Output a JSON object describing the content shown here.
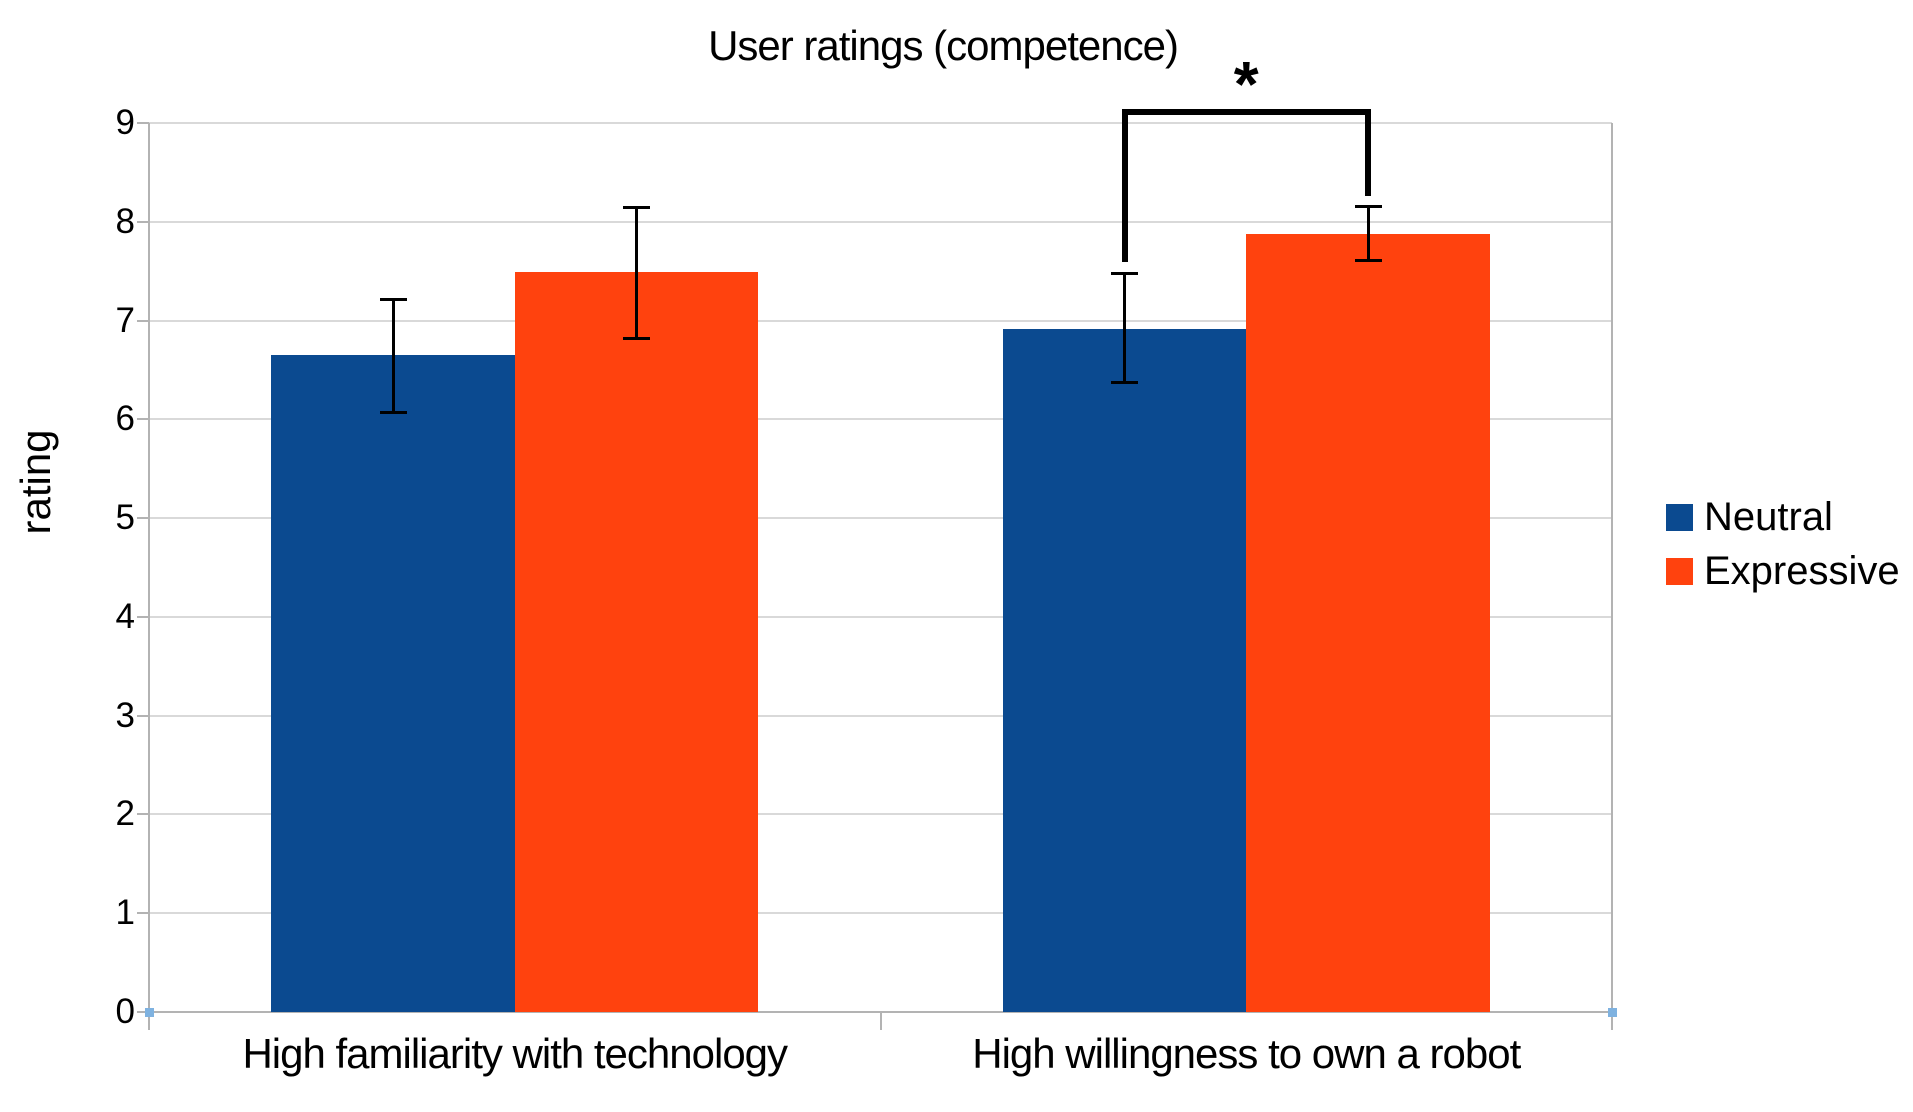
{
  "chart_data": {
    "type": "bar",
    "title": "User ratings (competence)",
    "ylabel": "rating",
    "xlabel": "",
    "ylim": [
      0,
      9
    ],
    "ytick_step": 1,
    "grid": "horizontal",
    "legend_position": "right",
    "categories": [
      "High familiarity with technology",
      "High willingness to own a robot"
    ],
    "series": [
      {
        "name": "Neutral",
        "color": "#0b4a90",
        "values": [
          6.65,
          6.91
        ],
        "error_low": [
          6.06,
          6.37
        ],
        "error_high": [
          7.22,
          7.48
        ]
      },
      {
        "name": "Expressive",
        "color": "#ff420e",
        "values": [
          7.49,
          7.88
        ],
        "error_low": [
          6.81,
          7.6
        ],
        "error_high": [
          8.15,
          8.16
        ]
      }
    ],
    "significance": {
      "label": "*",
      "category_index": 1,
      "between": [
        "Neutral",
        "Expressive"
      ]
    }
  },
  "colors": {
    "gridline": "#d9d9d9",
    "axis": "#b3b3b3",
    "text": "#000000",
    "selection_handle": "#7fb2e0",
    "background": "#ffffff"
  }
}
